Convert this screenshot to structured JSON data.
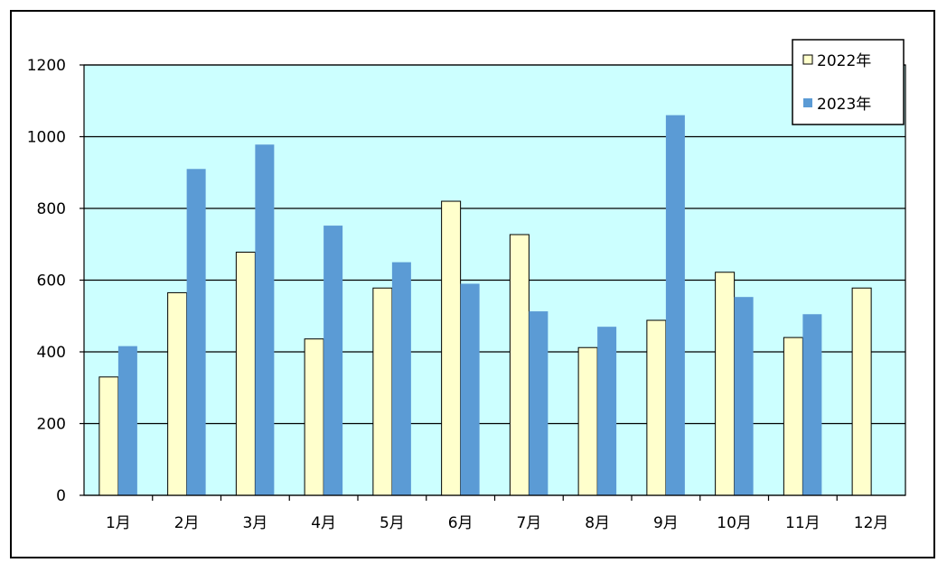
{
  "chart_data": {
    "type": "bar",
    "categories": [
      "1月",
      "2月",
      "3月",
      "4月",
      "5月",
      "6月",
      "7月",
      "8月",
      "9月",
      "10月",
      "11月",
      "12月"
    ],
    "series": [
      {
        "name": "2022年",
        "values": [
          330,
          565,
          678,
          436,
          578,
          820,
          727,
          412,
          488,
          622,
          440,
          578
        ],
        "color": "#ffffcc"
      },
      {
        "name": "2023年",
        "values": [
          416,
          910,
          978,
          752,
          650,
          590,
          513,
          470,
          1060,
          553,
          505,
          null
        ],
        "color": "#5b9bd5"
      }
    ],
    "ylim": [
      0,
      1200
    ],
    "yticks": [
      0,
      200,
      400,
      600,
      800,
      1000,
      1200
    ],
    "grid": true,
    "legend": "top-right",
    "plot_background": "#ccffff"
  }
}
